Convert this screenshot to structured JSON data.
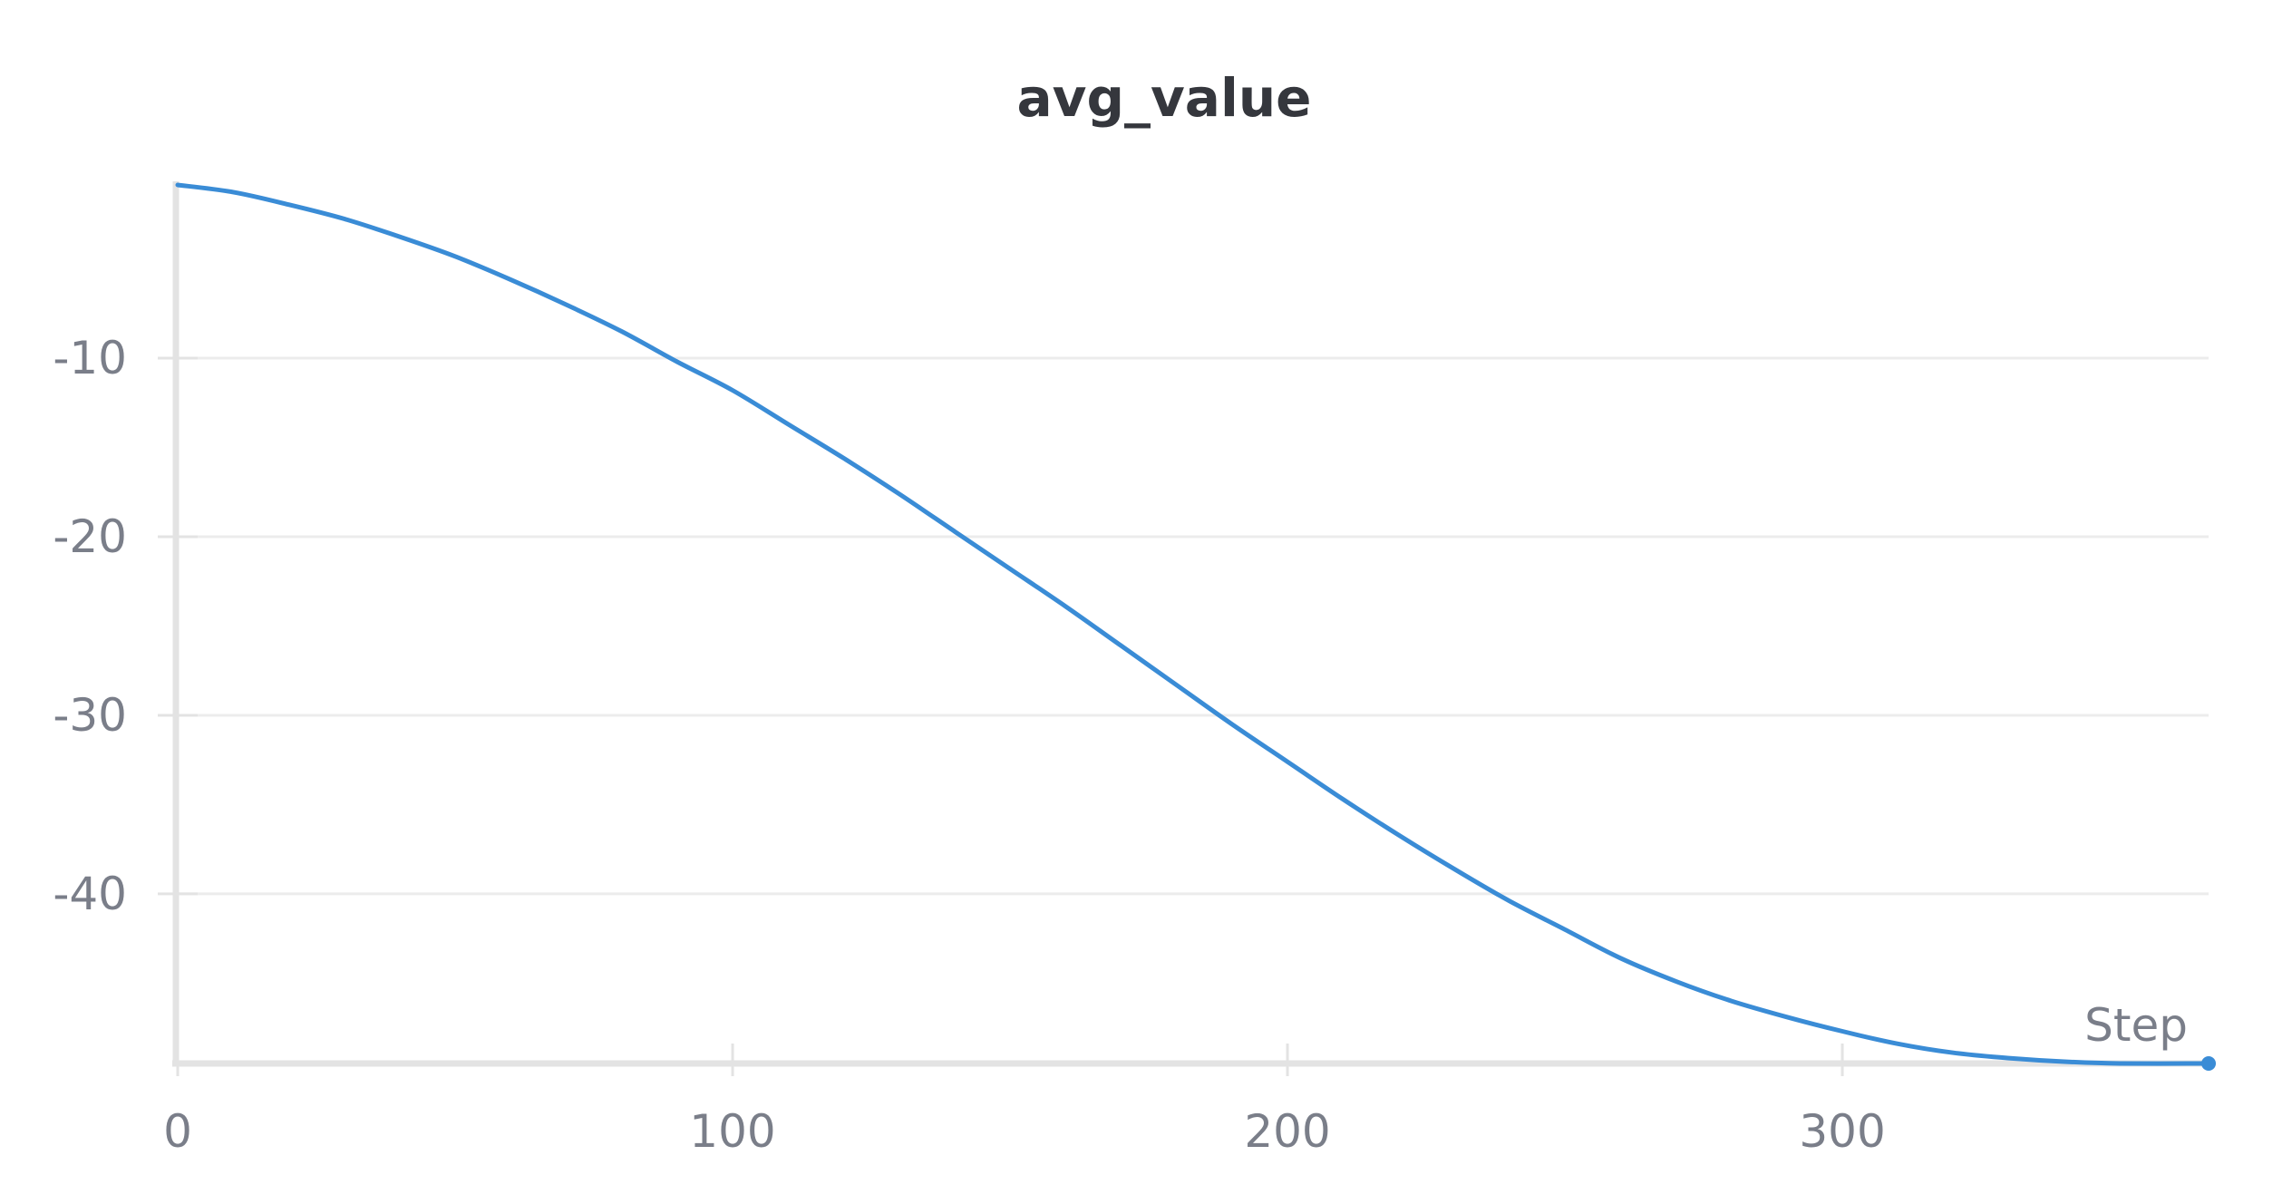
{
  "chart_data": {
    "type": "line",
    "title": "avg_value",
    "xlabel": "Step",
    "ylabel": "",
    "xlim": [
      0,
      366
    ],
    "ylim": [
      -49.5,
      -0.3
    ],
    "grid": true,
    "x_ticks": [
      0,
      100,
      200,
      300
    ],
    "y_ticks": [
      -10,
      -20,
      -30,
      -40
    ],
    "series": [
      {
        "color": "#3a8cd6",
        "x": [
          0,
          10,
          20,
          30,
          40,
          50,
          60,
          70,
          80,
          90,
          100,
          110,
          120,
          130,
          140,
          150,
          160,
          170,
          180,
          190,
          200,
          210,
          220,
          230,
          240,
          250,
          260,
          270,
          280,
          290,
          300,
          310,
          320,
          330,
          340,
          350,
          366
        ],
        "y": [
          -0.3,
          -0.7,
          -1.4,
          -2.2,
          -3.2,
          -4.3,
          -5.6,
          -7.0,
          -8.5,
          -10.2,
          -11.8,
          -13.7,
          -15.6,
          -17.6,
          -19.7,
          -21.8,
          -23.9,
          -26.1,
          -28.3,
          -30.5,
          -32.6,
          -34.7,
          -36.7,
          -38.6,
          -40.4,
          -42.0,
          -43.6,
          -44.9,
          -46.0,
          -46.9,
          -47.7,
          -48.4,
          -48.9,
          -49.2,
          -49.4,
          -49.5,
          -49.5
        ]
      }
    ]
  }
}
